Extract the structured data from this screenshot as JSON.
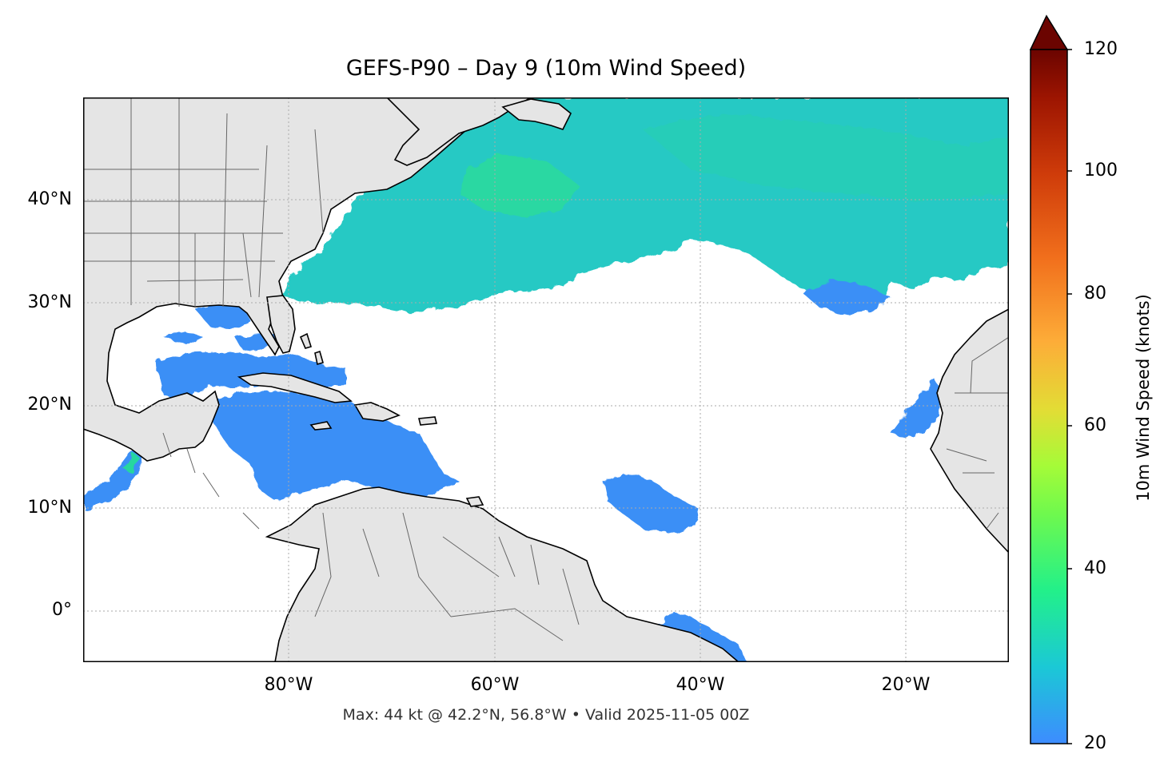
{
  "title": "GEFS-P90 – Day 9 (10m Wind Speed)",
  "footer": "Max: 44 kt @ 42.2°N, 56.8°W • Valid 2025-11-05 00Z",
  "axes": {
    "lat_labels": [
      "40°N",
      "30°N",
      "20°N",
      "10°N",
      "0°"
    ],
    "lon_labels": [
      "80°W",
      "60°W",
      "40°W",
      "20°W"
    ],
    "lon_range": [
      -100,
      -10
    ],
    "lat_range": [
      -5,
      50
    ],
    "gridlines": true
  },
  "colorbar": {
    "label": "10m Wind Speed (knots)",
    "ticks": [
      "120",
      "100",
      "80",
      "60",
      "40",
      "20"
    ],
    "range": [
      20,
      120
    ],
    "extend": "max",
    "colormap": [
      "#3d8cff",
      "#1bc8d6",
      "#22f08a",
      "#a5fb38",
      "#e2dd35",
      "#fdac38",
      "#f16f1c",
      "#cf3c0a",
      "#9d1501",
      "#6b0400"
    ]
  },
  "colors": {
    "land": "#e5e5e5",
    "ocean": "#ffffff",
    "coastline": "#000000",
    "borders": "#666666"
  }
}
